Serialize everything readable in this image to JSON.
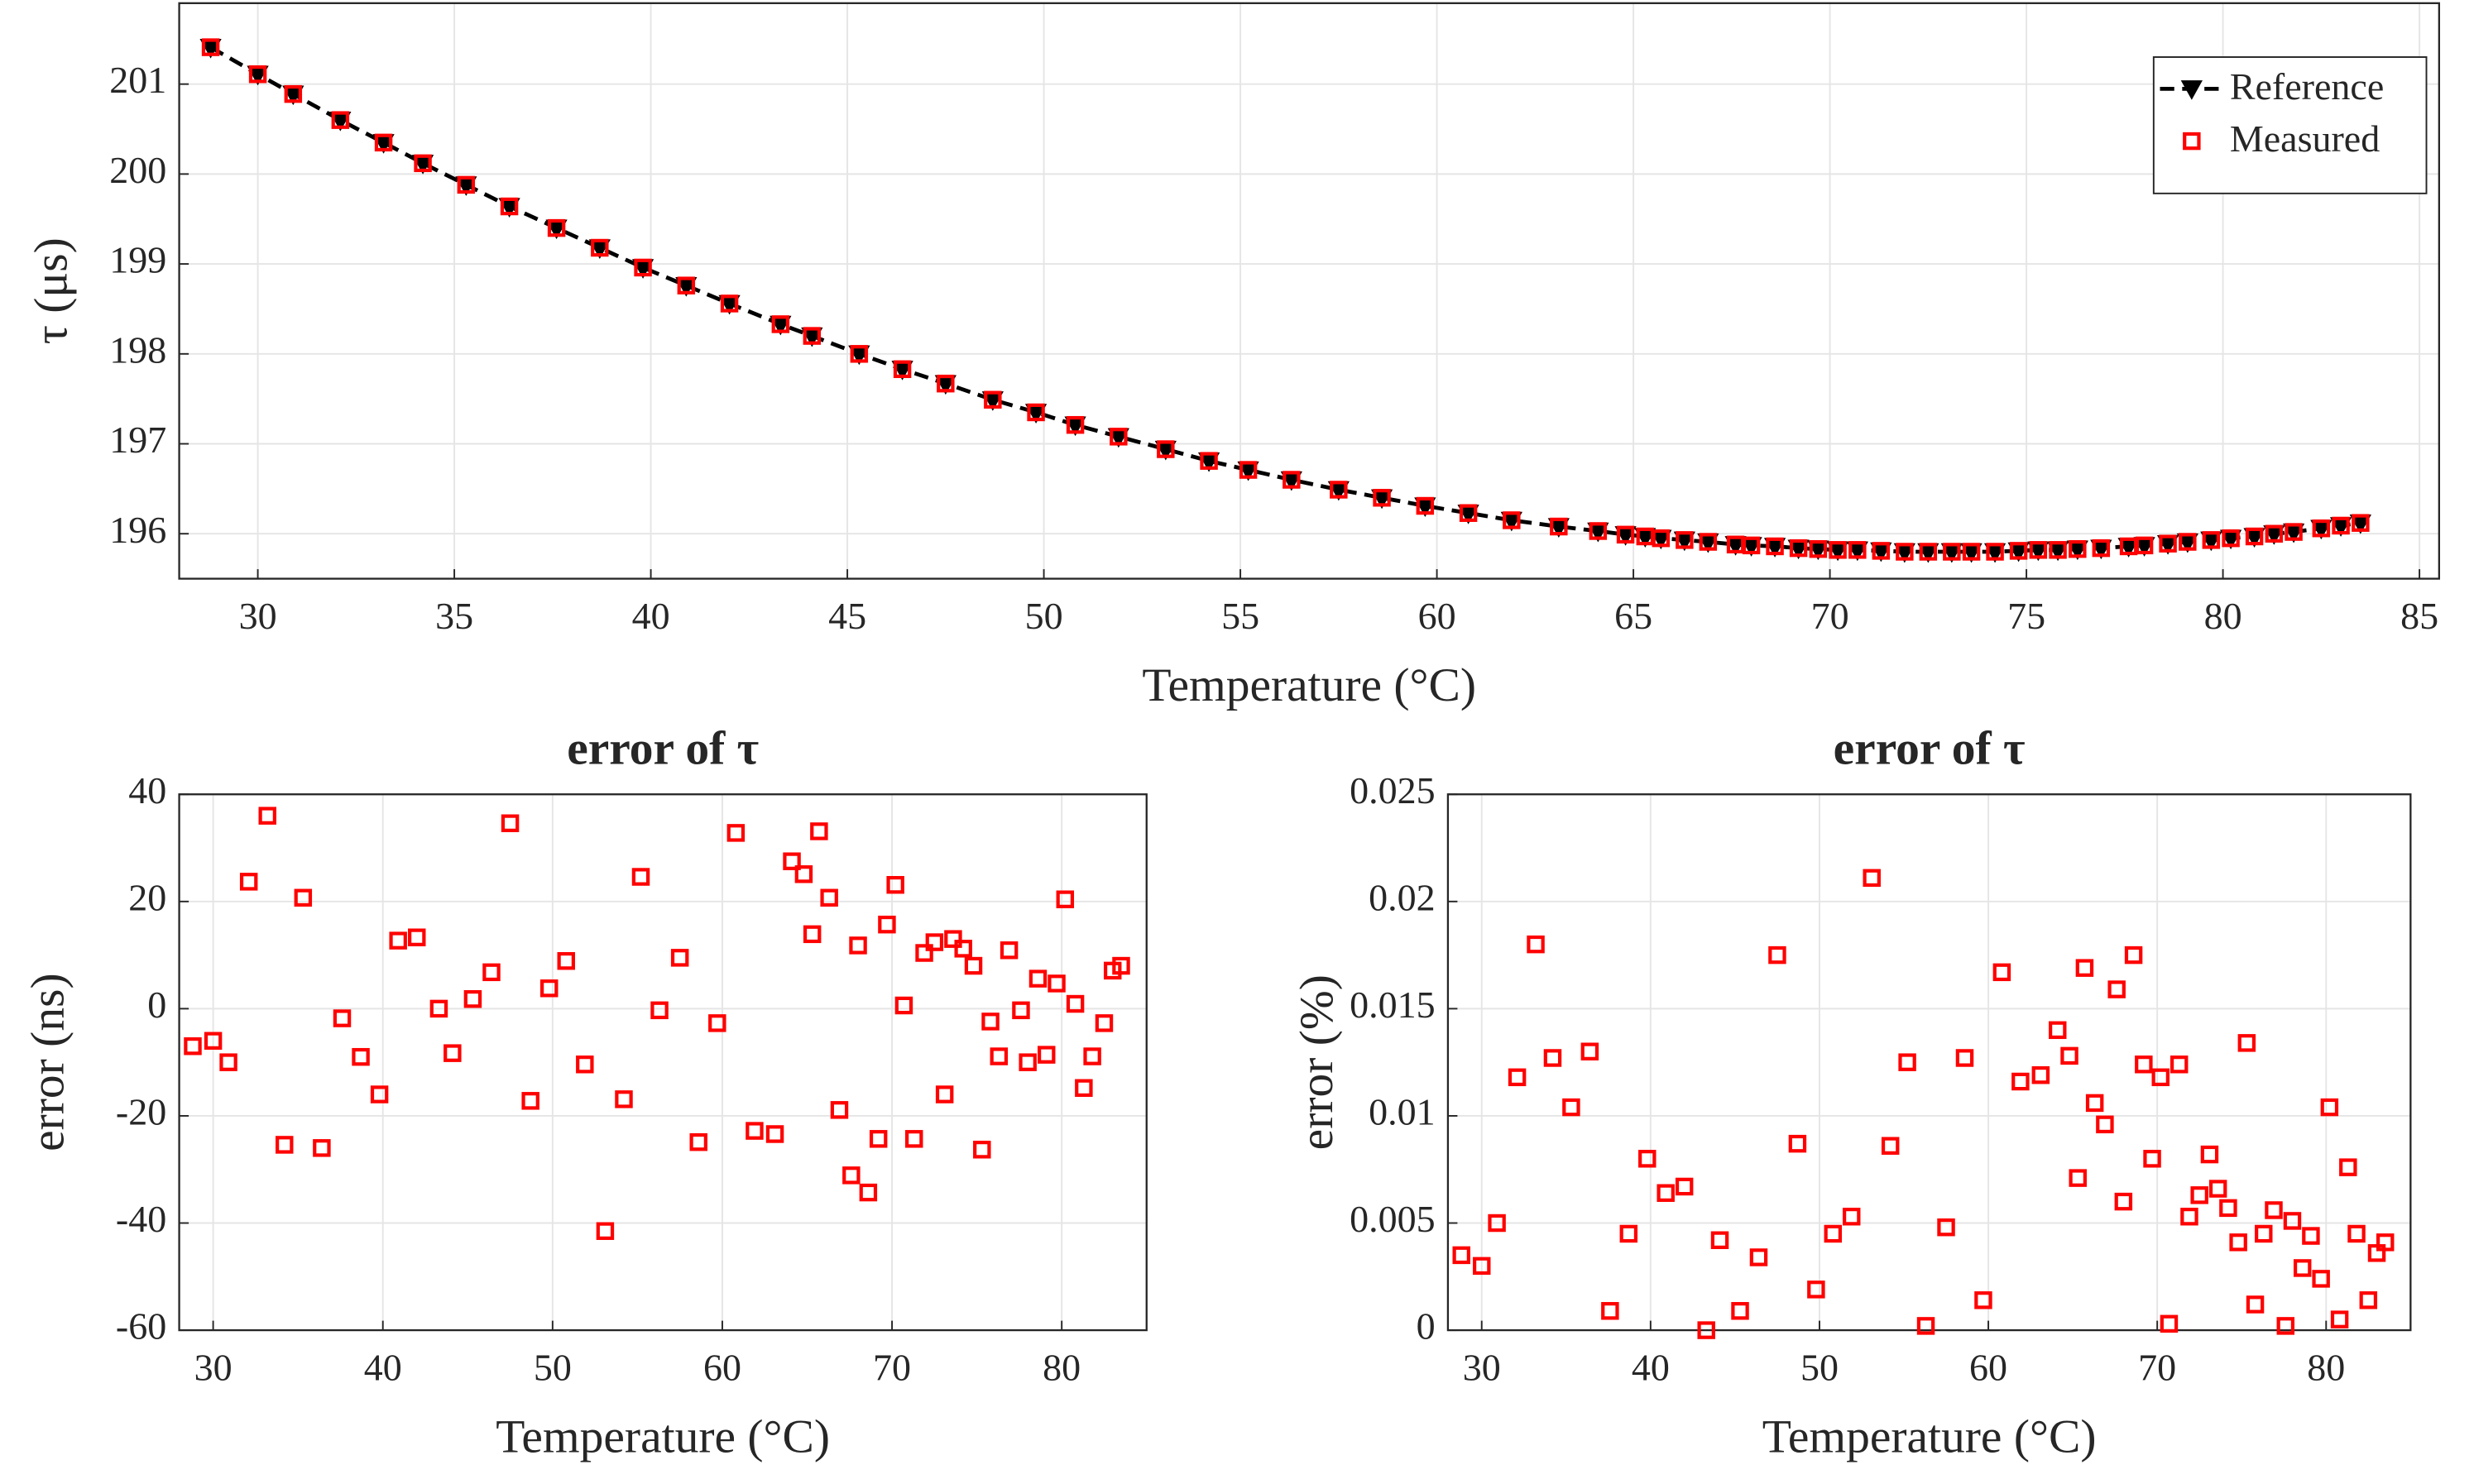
{
  "chart_data": [
    {
      "type": "line",
      "xlabel": "Temperature (°C)",
      "ylabel": "τ (μs)",
      "x": [
        28.8,
        30,
        30.9,
        32.1,
        33.2,
        34.2,
        35.3,
        36.4,
        37.6,
        38.7,
        39.8,
        40.9,
        42.0,
        43.3,
        44.1,
        45.3,
        46.4,
        47.5,
        48.7,
        49.8,
        50.8,
        51.9,
        53.1,
        54.2,
        55.2,
        56.3,
        57.5,
        58.6,
        59.7,
        60.8,
        61.9,
        63.1,
        64.1,
        64.8,
        65.3,
        65.7,
        66.3,
        66.9,
        67.6,
        68.0,
        68.6,
        69.2,
        69.7,
        70.2,
        70.7,
        71.3,
        71.9,
        72.5,
        73.1,
        73.6,
        74.2,
        74.8,
        75.3,
        75.8,
        76.3,
        76.9,
        77.6,
        78.0,
        78.6,
        79.1,
        79.7,
        80.2,
        80.8,
        81.3,
        81.8,
        82.5,
        83.0,
        83.5
      ],
      "series": [
        {
          "name": "Reference",
          "color": "#000000",
          "line_style": "dashed",
          "marker": "triangle-down",
          "values": [
            201.41,
            201.11,
            200.89,
            200.6,
            200.35,
            200.12,
            199.88,
            199.64,
            199.4,
            199.18,
            198.96,
            198.76,
            198.56,
            198.33,
            198.2,
            198.0,
            197.83,
            197.67,
            197.49,
            197.35,
            197.21,
            197.08,
            196.94,
            196.81,
            196.71,
            196.6,
            196.49,
            196.4,
            196.31,
            196.23,
            196.15,
            196.08,
            196.03,
            195.99,
            195.97,
            195.95,
            195.93,
            195.91,
            195.88,
            195.87,
            195.86,
            195.84,
            195.83,
            195.82,
            195.82,
            195.81,
            195.8,
            195.8,
            195.8,
            195.8,
            195.8,
            195.81,
            195.82,
            195.82,
            195.83,
            195.84,
            195.86,
            195.87,
            195.89,
            195.91,
            195.93,
            195.95,
            195.97,
            196.0,
            196.02,
            196.06,
            196.09,
            196.12
          ]
        },
        {
          "name": "Measured",
          "color": "#ff0000",
          "marker": "square",
          "values": [
            201.41,
            201.11,
            200.89,
            200.6,
            200.35,
            200.12,
            199.88,
            199.64,
            199.4,
            199.18,
            198.96,
            198.76,
            198.56,
            198.33,
            198.2,
            198.0,
            197.83,
            197.67,
            197.49,
            197.35,
            197.21,
            197.08,
            196.94,
            196.81,
            196.71,
            196.6,
            196.49,
            196.4,
            196.31,
            196.23,
            196.15,
            196.08,
            196.03,
            195.99,
            195.97,
            195.95,
            195.93,
            195.91,
            195.88,
            195.87,
            195.86,
            195.84,
            195.83,
            195.82,
            195.82,
            195.81,
            195.8,
            195.8,
            195.8,
            195.8,
            195.8,
            195.81,
            195.82,
            195.82,
            195.83,
            195.84,
            195.86,
            195.87,
            195.89,
            195.91,
            195.93,
            195.95,
            195.97,
            196.0,
            196.02,
            196.06,
            196.09,
            196.12
          ]
        }
      ],
      "xlim": [
        28,
        85.5
      ],
      "xticks": [
        30,
        35,
        40,
        45,
        50,
        55,
        60,
        65,
        70,
        75,
        80,
        85
      ],
      "ylim": [
        195.5,
        201.9
      ],
      "yticks": [
        196,
        197,
        198,
        199,
        200,
        201
      ],
      "grid": true,
      "legend": "upper right"
    },
    {
      "type": "scatter",
      "title": "error of τ",
      "xlabel": "Temperature (°C)",
      "ylabel": "error (ns)",
      "x": [
        28.8,
        30,
        30.9,
        32.1,
        33.2,
        34.2,
        35.3,
        36.4,
        37.6,
        38.7,
        39.8,
        40.9,
        42.0,
        43.3,
        44.1,
        45.3,
        46.4,
        47.5,
        48.7,
        49.8,
        50.8,
        51.9,
        53.1,
        54.2,
        55.2,
        56.3,
        57.5,
        58.6,
        59.7,
        60.8,
        61.9,
        63.1,
        64.1,
        64.8,
        65.3,
        65.7,
        66.3,
        66.9,
        67.6,
        68.0,
        68.6,
        69.2,
        69.7,
        70.2,
        70.7,
        71.3,
        71.9,
        72.5,
        73.1,
        73.6,
        74.2,
        74.8,
        75.3,
        75.8,
        76.3,
        76.9,
        77.6,
        78.0,
        78.6,
        79.1,
        79.7,
        80.2,
        80.8,
        81.3,
        81.8,
        82.5,
        83.0,
        83.5
      ],
      "series": [
        {
          "color": "#ff0000",
          "marker": "square",
          "values": [
            -7,
            -6,
            -10,
            23.7,
            36,
            -25.4,
            20.7,
            -26,
            -1.8,
            -9,
            -16,
            12.7,
            13.3,
            0,
            -8.3,
            1.8,
            6.8,
            34.6,
            -17.2,
            3.8,
            8.9,
            -10.4,
            -41.5,
            -16.9,
            24.6,
            -0.3,
            9.5,
            -24.9,
            -2.7,
            32.8,
            -22.8,
            -23.4,
            27.5,
            25.1,
            13.9,
            33.1,
            20.7,
            -18.9,
            -31.1,
            11.8,
            -34.3,
            -24.3,
            15.7,
            23.1,
            0.6,
            -24.3,
            10.4,
            12.4,
            -16,
            13,
            11.2,
            8,
            -26.3,
            -2.4,
            -8.9,
            10.9,
            -0.3,
            -10,
            5.6,
            -8.6,
            4.7,
            20.4,
            0.9,
            -14.8,
            -8.9,
            -2.7,
            7.1,
            8
          ]
        }
      ],
      "xlim": [
        28,
        85
      ],
      "xticks": [
        30,
        40,
        50,
        60,
        70,
        80
      ],
      "ylim": [
        -60,
        40
      ],
      "yticks": [
        -60,
        -40,
        -20,
        0,
        20,
        40
      ],
      "grid": true
    },
    {
      "type": "scatter",
      "title": "error of τ",
      "xlabel": "Temperature (°C)",
      "ylabel": "error (%)",
      "x": [
        28.8,
        30,
        30.9,
        32.1,
        33.2,
        34.2,
        35.3,
        36.4,
        37.6,
        38.7,
        39.8,
        40.9,
        42.0,
        43.3,
        44.1,
        45.3,
        46.4,
        47.5,
        48.7,
        49.8,
        50.8,
        51.9,
        53.1,
        54.2,
        55.2,
        56.3,
        57.5,
        58.6,
        59.7,
        60.8,
        61.9,
        63.1,
        64.1,
        64.8,
        65.3,
        65.7,
        66.3,
        66.9,
        67.6,
        68.0,
        68.6,
        69.2,
        69.7,
        70.2,
        70.7,
        71.3,
        71.9,
        72.5,
        73.1,
        73.6,
        74.2,
        74.8,
        75.3,
        75.8,
        76.3,
        76.9,
        77.6,
        78.0,
        78.6,
        79.1,
        79.7,
        80.2,
        80.8,
        81.3,
        81.8,
        82.5,
        83.0,
        83.5
      ],
      "series": [
        {
          "color": "#ff0000",
          "marker": "square",
          "values": [
            0.0035,
            0.003,
            0.005,
            0.0118,
            0.018,
            0.0127,
            0.0104,
            0.013,
            0.0009,
            0.0045,
            0.008,
            0.0064,
            0.0067,
            0,
            0.0042,
            0.0009,
            0.0034,
            0.0175,
            0.0087,
            0.0019,
            0.0045,
            0.0053,
            0.0211,
            0.0086,
            0.0125,
            0.0002,
            0.0048,
            0.0127,
            0.0014,
            0.0167,
            0.0116,
            0.0119,
            0.014,
            0.0128,
            0.0071,
            0.0169,
            0.0106,
            0.0096,
            0.0159,
            0.006,
            0.0175,
            0.0124,
            0.008,
            0.0118,
            0.0003,
            0.0124,
            0.0053,
            0.0063,
            0.0082,
            0.0066,
            0.0057,
            0.0041,
            0.0134,
            0.0012,
            0.0045,
            0.0056,
            0.0002,
            0.0051,
            0.0029,
            0.0044,
            0.0024,
            0.0104,
            0.0005,
            0.0076,
            0.0045,
            0.0014,
            0.0036,
            0.0041
          ]
        }
      ],
      "xlim": [
        28,
        85
      ],
      "xticks": [
        30,
        40,
        50,
        60,
        70,
        80
      ],
      "ylim": [
        0,
        0.025
      ],
      "yticks": [
        0,
        0.005,
        0.01,
        0.015,
        0.02,
        0.025
      ],
      "grid": true
    }
  ]
}
